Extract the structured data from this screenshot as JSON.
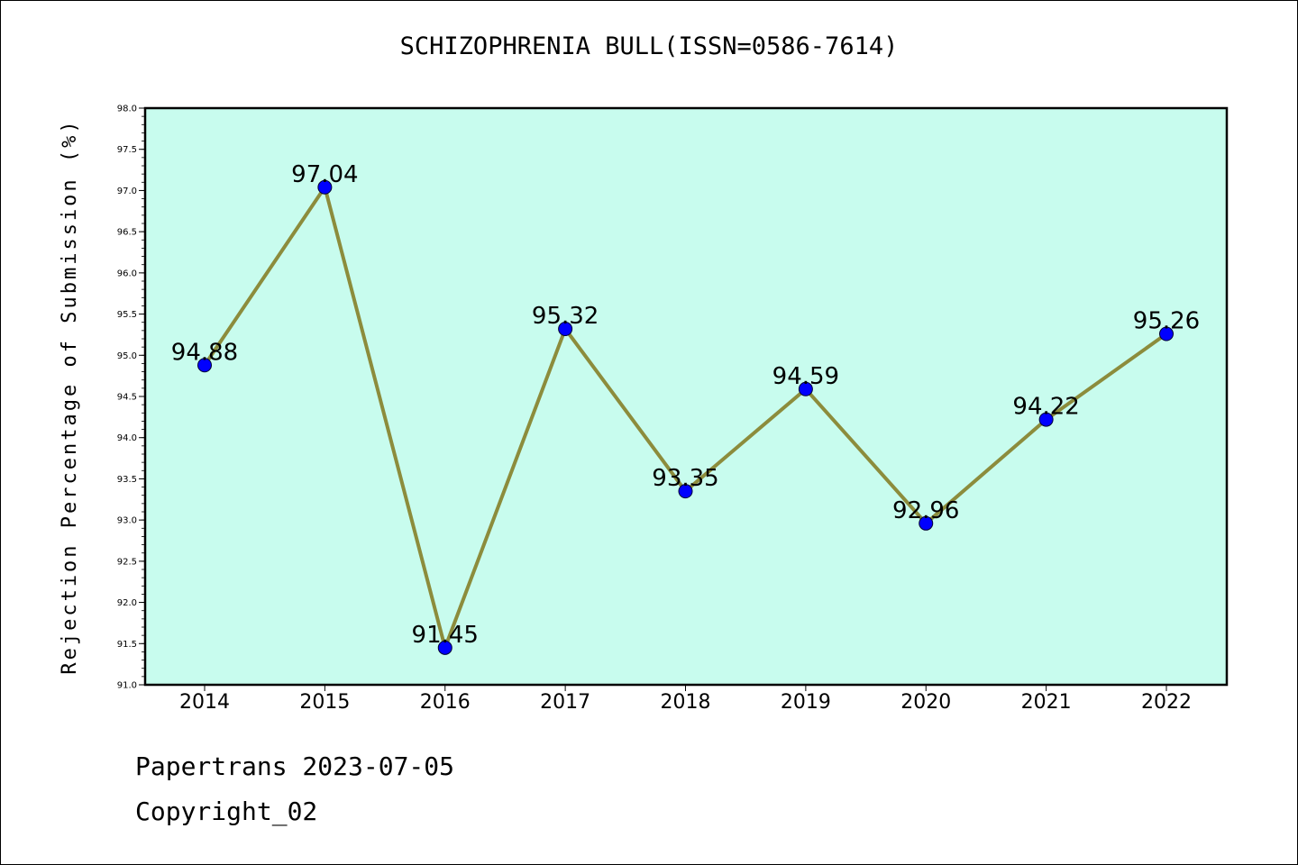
{
  "chart_data": {
    "type": "line",
    "title": "SCHIZOPHRENIA BULL(ISSN=0586-7614)",
    "ylabel": "Rejection Percentage of Submission (%)",
    "xlabel": "",
    "x": [
      "2014",
      "2015",
      "2016",
      "2017",
      "2018",
      "2019",
      "2020",
      "2021",
      "2022"
    ],
    "series": [
      {
        "values": [
          94.88,
          97.04,
          91.45,
          95.32,
          93.35,
          94.59,
          92.96,
          94.22,
          95.26
        ]
      }
    ],
    "data_labels": [
      "94.88",
      "97.04",
      "91.45",
      "95.32",
      "93.35",
      "94.59",
      "92.96",
      "94.22",
      "95.26"
    ],
    "ylim": [
      91.0,
      98.0
    ],
    "yticks": [
      "91.0",
      "91.5",
      "92.0",
      "92.5",
      "93.0",
      "93.5",
      "94.0",
      "94.5",
      "95.0",
      "95.5",
      "96.0",
      "96.5",
      "97.0",
      "97.5",
      "98.0"
    ],
    "grid": false,
    "colors": {
      "plot_background": "#c8fcee",
      "line": "#8c8c3c",
      "marker": "#0000ff"
    }
  },
  "footer": {
    "line1": "Papertrans 2023-07-05",
    "line2": "Copyright_02"
  }
}
